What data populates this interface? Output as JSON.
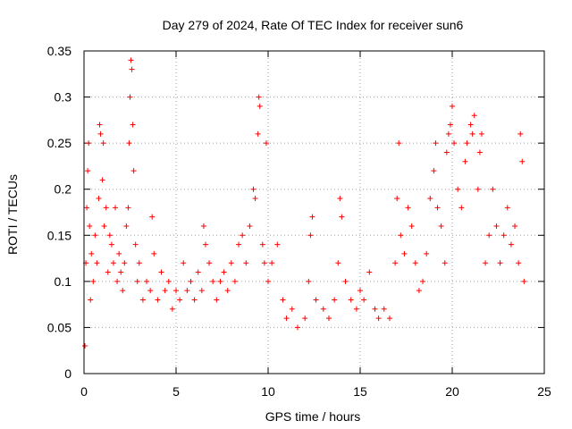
{
  "chart_data": {
    "type": "scatter",
    "title": "Day 279 of 2024, Rate Of TEC Index for receiver sun6",
    "xlabel": "GPS time / hours",
    "ylabel": "ROTI / TECUs",
    "xlim": [
      0,
      25
    ],
    "ylim": [
      0,
      0.35
    ],
    "xticks": [
      "0",
      "5",
      "10",
      "15",
      "20",
      "25"
    ],
    "yticks": [
      "0",
      "0.05",
      "0.1",
      "0.15",
      "0.2",
      "0.25",
      "0.3",
      "0.35"
    ],
    "xtick_values": [
      0,
      5,
      10,
      15,
      20,
      25
    ],
    "ytick_values": [
      0,
      0.05,
      0.1,
      0.15,
      0.2,
      0.25,
      0.3,
      0.35
    ],
    "grid": true,
    "marker": "plus",
    "color": "#ff0000",
    "series": [
      {
        "points": [
          [
            0.05,
            0.03
          ],
          [
            0.1,
            0.12
          ],
          [
            0.15,
            0.18
          ],
          [
            0.2,
            0.22
          ],
          [
            0.25,
            0.25
          ],
          [
            0.3,
            0.16
          ],
          [
            0.35,
            0.08
          ],
          [
            0.4,
            0.13
          ],
          [
            0.5,
            0.1
          ],
          [
            0.6,
            0.15
          ],
          [
            0.7,
            0.12
          ],
          [
            0.8,
            0.19
          ],
          [
            0.85,
            0.27
          ],
          [
            0.9,
            0.26
          ],
          [
            1.0,
            0.21
          ],
          [
            1.05,
            0.25
          ],
          [
            1.1,
            0.16
          ],
          [
            1.2,
            0.18
          ],
          [
            1.3,
            0.11
          ],
          [
            1.4,
            0.15
          ],
          [
            1.5,
            0.14
          ],
          [
            1.6,
            0.12
          ],
          [
            1.7,
            0.18
          ],
          [
            1.8,
            0.1
          ],
          [
            1.9,
            0.13
          ],
          [
            2.0,
            0.11
          ],
          [
            2.1,
            0.09
          ],
          [
            2.2,
            0.12
          ],
          [
            2.3,
            0.16
          ],
          [
            2.4,
            0.18
          ],
          [
            2.45,
            0.25
          ],
          [
            2.5,
            0.3
          ],
          [
            2.55,
            0.34
          ],
          [
            2.6,
            0.33
          ],
          [
            2.65,
            0.27
          ],
          [
            2.7,
            0.22
          ],
          [
            2.8,
            0.14
          ],
          [
            2.9,
            0.1
          ],
          [
            3.0,
            0.12
          ],
          [
            3.2,
            0.08
          ],
          [
            3.4,
            0.1
          ],
          [
            3.6,
            0.09
          ],
          [
            3.7,
            0.17
          ],
          [
            3.8,
            0.13
          ],
          [
            4.0,
            0.08
          ],
          [
            4.2,
            0.11
          ],
          [
            4.4,
            0.09
          ],
          [
            4.6,
            0.1
          ],
          [
            4.8,
            0.07
          ],
          [
            5.0,
            0.09
          ],
          [
            5.2,
            0.08
          ],
          [
            5.4,
            0.12
          ],
          [
            5.6,
            0.09
          ],
          [
            5.8,
            0.1
          ],
          [
            6.0,
            0.08
          ],
          [
            6.2,
            0.11
          ],
          [
            6.4,
            0.09
          ],
          [
            6.5,
            0.16
          ],
          [
            6.6,
            0.14
          ],
          [
            6.8,
            0.12
          ],
          [
            7.0,
            0.1
          ],
          [
            7.2,
            0.08
          ],
          [
            7.4,
            0.1
          ],
          [
            7.6,
            0.11
          ],
          [
            7.8,
            0.09
          ],
          [
            8.0,
            0.12
          ],
          [
            8.2,
            0.1
          ],
          [
            8.4,
            0.14
          ],
          [
            8.6,
            0.15
          ],
          [
            8.8,
            0.12
          ],
          [
            9.0,
            0.16
          ],
          [
            9.2,
            0.2
          ],
          [
            9.3,
            0.19
          ],
          [
            9.45,
            0.26
          ],
          [
            9.5,
            0.3
          ],
          [
            9.55,
            0.29
          ],
          [
            9.7,
            0.14
          ],
          [
            9.8,
            0.12
          ],
          [
            9.9,
            0.25
          ],
          [
            10.0,
            0.1
          ],
          [
            10.2,
            0.12
          ],
          [
            10.5,
            0.14
          ],
          [
            10.8,
            0.08
          ],
          [
            11.0,
            0.06
          ],
          [
            11.3,
            0.07
          ],
          [
            11.6,
            0.05
          ],
          [
            12.0,
            0.06
          ],
          [
            12.2,
            0.1
          ],
          [
            12.3,
            0.15
          ],
          [
            12.4,
            0.17
          ],
          [
            12.6,
            0.08
          ],
          [
            13.0,
            0.07
          ],
          [
            13.3,
            0.06
          ],
          [
            13.6,
            0.08
          ],
          [
            13.8,
            0.12
          ],
          [
            13.9,
            0.19
          ],
          [
            14.0,
            0.17
          ],
          [
            14.2,
            0.1
          ],
          [
            14.5,
            0.08
          ],
          [
            14.8,
            0.07
          ],
          [
            15.0,
            0.09
          ],
          [
            15.2,
            0.08
          ],
          [
            15.5,
            0.11
          ],
          [
            15.8,
            0.07
          ],
          [
            16.0,
            0.06
          ],
          [
            16.3,
            0.07
          ],
          [
            16.6,
            0.06
          ],
          [
            16.9,
            0.12
          ],
          [
            17.0,
            0.19
          ],
          [
            17.1,
            0.25
          ],
          [
            17.2,
            0.15
          ],
          [
            17.4,
            0.13
          ],
          [
            17.6,
            0.18
          ],
          [
            17.8,
            0.16
          ],
          [
            18.0,
            0.12
          ],
          [
            18.2,
            0.09
          ],
          [
            18.4,
            0.1
          ],
          [
            18.6,
            0.13
          ],
          [
            18.8,
            0.19
          ],
          [
            19.0,
            0.22
          ],
          [
            19.1,
            0.25
          ],
          [
            19.2,
            0.18
          ],
          [
            19.4,
            0.16
          ],
          [
            19.6,
            0.12
          ],
          [
            19.7,
            0.24
          ],
          [
            19.8,
            0.26
          ],
          [
            19.9,
            0.27
          ],
          [
            20.0,
            0.29
          ],
          [
            20.1,
            0.25
          ],
          [
            20.3,
            0.2
          ],
          [
            20.5,
            0.18
          ],
          [
            20.7,
            0.23
          ],
          [
            20.8,
            0.25
          ],
          [
            21.0,
            0.27
          ],
          [
            21.1,
            0.26
          ],
          [
            21.2,
            0.28
          ],
          [
            21.4,
            0.2
          ],
          [
            21.5,
            0.24
          ],
          [
            21.6,
            0.26
          ],
          [
            21.8,
            0.12
          ],
          [
            22.0,
            0.15
          ],
          [
            22.2,
            0.2
          ],
          [
            22.4,
            0.16
          ],
          [
            22.6,
            0.12
          ],
          [
            22.8,
            0.15
          ],
          [
            23.0,
            0.18
          ],
          [
            23.2,
            0.14
          ],
          [
            23.4,
            0.16
          ],
          [
            23.6,
            0.12
          ],
          [
            23.7,
            0.26
          ],
          [
            23.8,
            0.23
          ],
          [
            23.9,
            0.1
          ]
        ]
      }
    ]
  }
}
